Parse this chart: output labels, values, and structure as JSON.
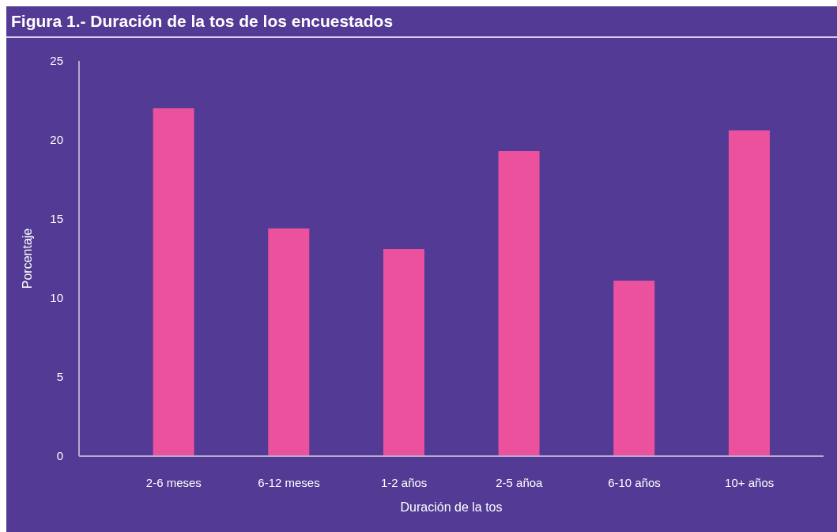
{
  "chart_data": {
    "type": "bar",
    "title": "Figura 1.- Duración de la tos de los encuestados",
    "xlabel": "Duración de la tos",
    "ylabel": "Porcentaje",
    "categories": [
      "2-6 meses",
      "6-12 meses",
      "1-2 años",
      "2-5 añoa",
      "6-10 años",
      "10+ años"
    ],
    "values": [
      22.0,
      14.4,
      13.1,
      19.3,
      11.1,
      20.6
    ],
    "color": "#ec519e",
    "ylim": [
      0,
      25
    ],
    "yticks": [
      0,
      5,
      10,
      15,
      20,
      25
    ],
    "grid": false,
    "legend": false
  }
}
